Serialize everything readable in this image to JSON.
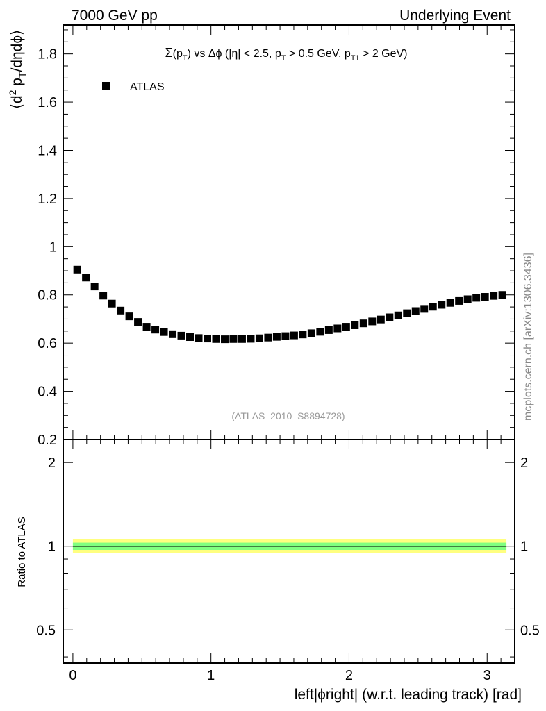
{
  "header": {
    "left": "7000 GeV pp",
    "right": "Underlying Event"
  },
  "side_label": "mcplots.cern.ch [arXiv:1306.3436]",
  "chart_data": [
    {
      "type": "scatter",
      "panel": "main",
      "title": "Σ(p_T) vs Δφ (|η| < 2.5, p_T > 0.5 GeV, p_T1 > 2 GeV)",
      "ylabel": "⟨d² p_T/dηdφ⟩",
      "watermark": "(ATLAS_2010_S8894728)",
      "xlim": [
        -0.07,
        3.2
      ],
      "ylim": [
        0.2,
        1.92
      ],
      "yticks": [
        0.2,
        0.4,
        0.6,
        0.8,
        1.0,
        1.2,
        1.4,
        1.6,
        1.8
      ],
      "ytick_labels": [
        "0.2",
        "0.4",
        "0.6",
        "0.8",
        "1",
        "1.2",
        "1.4",
        "1.6",
        "1.8"
      ],
      "legend": {
        "placement": "top-left",
        "entries": [
          "ATLAS"
        ]
      },
      "series": [
        {
          "name": "ATLAS",
          "marker": "square",
          "color": "#000000",
          "x": [
            0.0314,
            0.0942,
            0.1571,
            0.2199,
            0.2827,
            0.3456,
            0.4084,
            0.4712,
            0.5341,
            0.5969,
            0.6597,
            0.7226,
            0.7854,
            0.8482,
            0.9111,
            0.9739,
            1.0367,
            1.0996,
            1.1624,
            1.2252,
            1.2881,
            1.3509,
            1.4137,
            1.4765,
            1.5394,
            1.6022,
            1.665,
            1.7279,
            1.7907,
            1.8535,
            1.9164,
            1.9792,
            2.042,
            2.1049,
            2.1677,
            2.2305,
            2.2934,
            2.3562,
            2.419,
            2.4819,
            2.5447,
            2.6075,
            2.6704,
            2.7332,
            2.796,
            2.8588,
            2.9217,
            2.9845,
            3.0473,
            3.1102
          ],
          "y": [
            0.905,
            0.872,
            0.835,
            0.797,
            0.764,
            0.735,
            0.711,
            0.688,
            0.668,
            0.656,
            0.646,
            0.637,
            0.631,
            0.625,
            0.621,
            0.619,
            0.617,
            0.616,
            0.617,
            0.617,
            0.618,
            0.62,
            0.623,
            0.626,
            0.629,
            0.632,
            0.636,
            0.641,
            0.647,
            0.654,
            0.661,
            0.668,
            0.674,
            0.682,
            0.69,
            0.698,
            0.707,
            0.715,
            0.724,
            0.733,
            0.742,
            0.751,
            0.759,
            0.767,
            0.775,
            0.782,
            0.788,
            0.792,
            0.796,
            0.8
          ]
        }
      ]
    },
    {
      "type": "line",
      "panel": "ratio",
      "ylabel": "Ratio to ATLAS",
      "xlabel": "left|ϕright| (w.r.t. leading track) [rad]",
      "scale": "log",
      "xlim": [
        -0.07,
        3.2
      ],
      "ylim": [
        0.38,
        2.42
      ],
      "xticks": [
        0,
        1,
        2,
        3
      ],
      "xtick_labels": [
        "0",
        "1",
        "2",
        "3"
      ],
      "yticks": [
        0.5,
        1,
        2
      ],
      "ytick_labels": [
        "0.5",
        "1",
        "2"
      ],
      "bands": [
        {
          "color": "#ffff80",
          "lower": 0.945,
          "upper": 1.06
        },
        {
          "color": "#80ff80",
          "lower": 0.97,
          "upper": 1.03
        }
      ],
      "reference": 1.0,
      "band_xrange": [
        0,
        3.14
      ]
    }
  ]
}
